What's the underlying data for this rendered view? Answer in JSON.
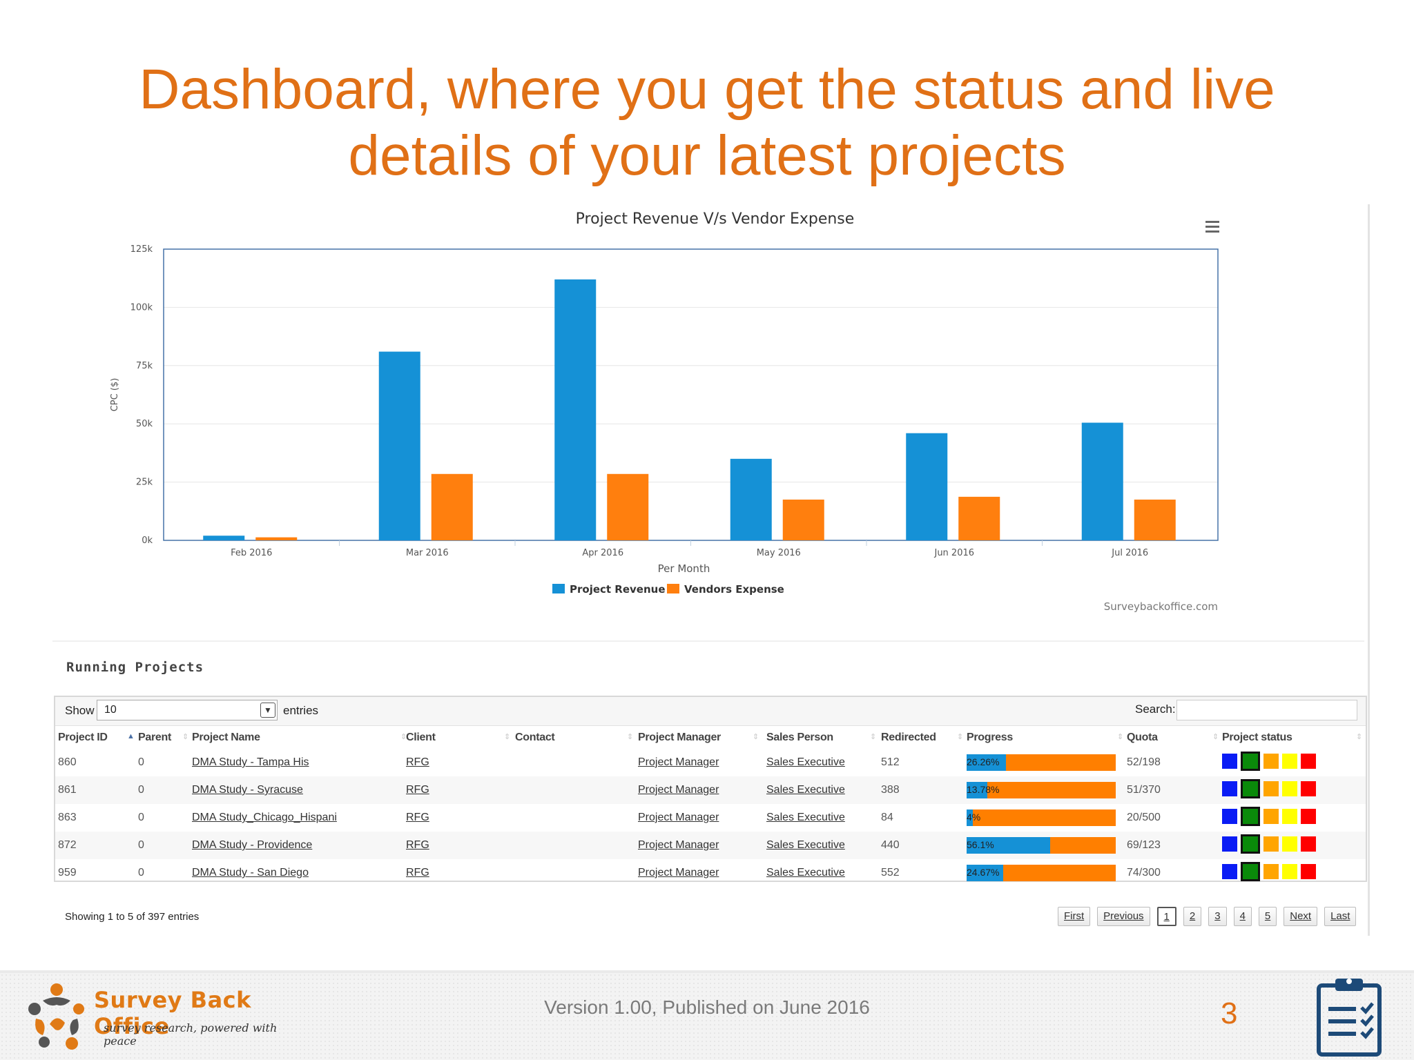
{
  "slide": {
    "title_line1": "Dashboard, where you get the status and live",
    "title_line2": "details of your latest projects"
  },
  "chart_data": {
    "type": "bar",
    "title": "Project Revenue V/s Vendor Expense",
    "xlabel": "Per Month",
    "ylabel": "CPC ($)",
    "categories": [
      "Feb 2016",
      "Mar 2016",
      "Apr 2016",
      "May 2016",
      "Jun 2016",
      "Jul 2016"
    ],
    "series": [
      {
        "name": "Project Revenue",
        "color": "#1591d6",
        "values": [
          2000,
          81000,
          112000,
          35000,
          46000,
          50500
        ]
      },
      {
        "name": "Vendors Expense",
        "color": "#ff7f0e",
        "values": [
          1300,
          28500,
          28500,
          17500,
          18700,
          17500
        ]
      }
    ],
    "ylim": [
      0,
      125000
    ],
    "yticks": [
      "0k",
      "25k",
      "50k",
      "75k",
      "100k",
      "125k"
    ],
    "credit": "Surveybackoffice.com",
    "grid": true,
    "legend": "bottom-center"
  },
  "table": {
    "section_title": "Running Projects",
    "show_label": "Show",
    "entries_value": "10",
    "entries_label": "entries",
    "search_label": "Search:",
    "search_value": "",
    "columns": [
      "Project ID",
      "Parent",
      "Project Name",
      "Client",
      "Contact",
      "Project Manager",
      "Sales Person",
      "Redirected",
      "Progress",
      "Quota",
      "Project status"
    ],
    "rows": [
      {
        "id": "860",
        "parent": "0",
        "name": "DMA Study - Tampa His",
        "client": "RFG",
        "contact": "",
        "manager": "Project Manager",
        "sales": "Sales Executive",
        "redirected": "512",
        "progress_label": "26.26%",
        "progress": 26.26,
        "quota": "52/198"
      },
      {
        "id": "861",
        "parent": "0",
        "name": "DMA Study - Syracuse",
        "client": "RFG",
        "contact": "",
        "manager": "Project Manager",
        "sales": "Sales Executive",
        "redirected": "388",
        "progress_label": "13.78%",
        "progress": 13.78,
        "quota": "51/370"
      },
      {
        "id": "863",
        "parent": "0",
        "name": "DMA Study_Chicago_Hispani",
        "client": "RFG",
        "contact": "",
        "manager": "Project Manager",
        "sales": "Sales Executive",
        "redirected": "84",
        "progress_label": "4%",
        "progress": 4,
        "quota": "20/500"
      },
      {
        "id": "872",
        "parent": "0",
        "name": "DMA Study - Providence",
        "client": "RFG",
        "contact": "",
        "manager": "Project Manager",
        "sales": "Sales Executive",
        "redirected": "440",
        "progress_label": "56.1%",
        "progress": 56.1,
        "quota": "69/123"
      },
      {
        "id": "959",
        "parent": "0",
        "name": "DMA Study - San Diego",
        "client": "RFG",
        "contact": "",
        "manager": "Project Manager",
        "sales": "Sales Executive",
        "redirected": "552",
        "progress_label": "24.67%",
        "progress": 24.67,
        "quota": "74/300"
      }
    ],
    "status_colors": [
      "#0a1cf5",
      "#0a8a0a",
      "#ffa500",
      "#ffff00",
      "#ff0000"
    ],
    "selected_status": 1,
    "info": "Showing 1 to 5 of 397 entries",
    "pager": [
      "First",
      "Previous",
      "1",
      "2",
      "3",
      "4",
      "5",
      "Next",
      "Last"
    ],
    "active_page": "1"
  },
  "footer": {
    "brand": "Survey Back Office",
    "tagline": "survey research, powered with peace",
    "version": "Version 1.00, Published on June 2016",
    "page_number": "3"
  }
}
